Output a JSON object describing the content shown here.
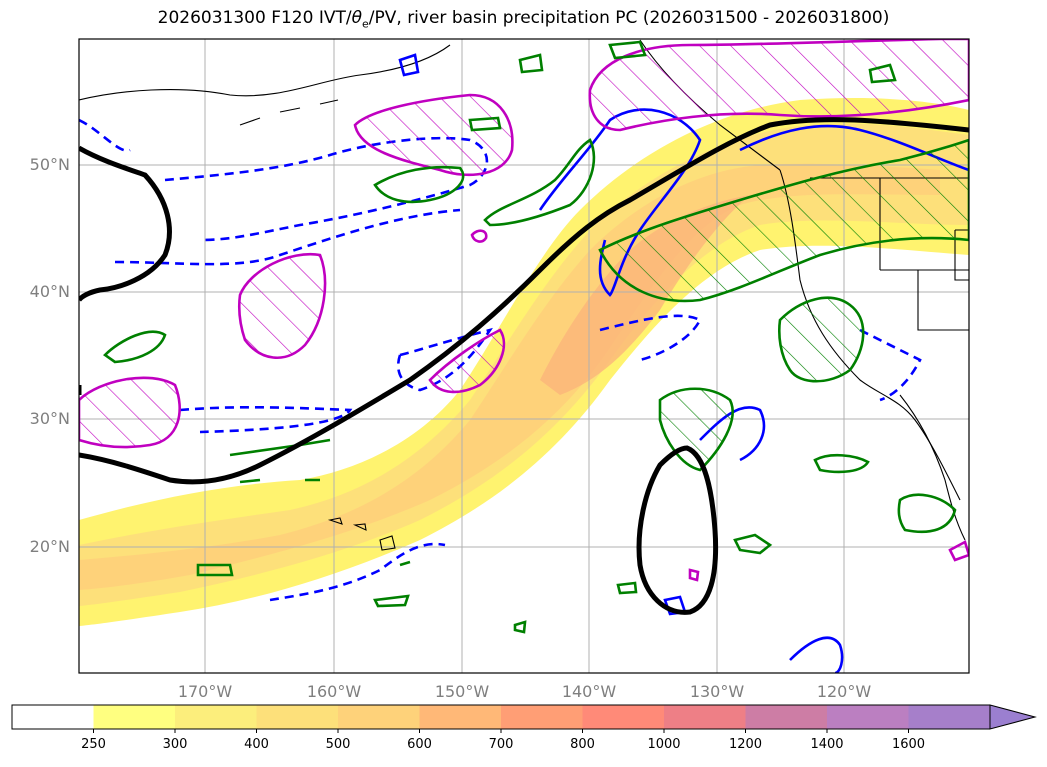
{
  "title": {
    "prefix": "2026031300 F120 IVT/",
    "theta_symbol": "θ",
    "theta_sub": "e",
    "suffix": "/PV, river basin precipitation PC (2026031500 - 2026031800)"
  },
  "map": {
    "lat_labels": [
      "50°N",
      "40°N",
      "30°N",
      "20°N"
    ],
    "lon_labels": [
      "170°W",
      "160°W",
      "150°W",
      "140°W",
      "130°W",
      "120°W"
    ]
  },
  "colorbar": {
    "levels": [
      "250",
      "300",
      "400",
      "500",
      "600",
      "700",
      "800",
      "1000",
      "1200",
      "1400",
      "1600"
    ],
    "colors": [
      "#ffffff",
      "#ffff80",
      "#fcee7c",
      "#fde07a",
      "#fed27a",
      "#ffb877",
      "#ff9e75",
      "#ff8a78",
      "#ee7f86",
      "#cd7da5",
      "#bb7fc1",
      "#a67fca"
    ]
  },
  "colors": {
    "ivt_low": "#fff36f",
    "ivt_mid": "#fed27a",
    "ivt_high": "#fbb57a",
    "pv_contour": "#000000",
    "precip_green": "#008000",
    "theta_blue": "#0000ff",
    "theta_magenta": "#c000c0",
    "grid": "#b0b0b0",
    "label_gray": "#7f7f7f"
  }
}
